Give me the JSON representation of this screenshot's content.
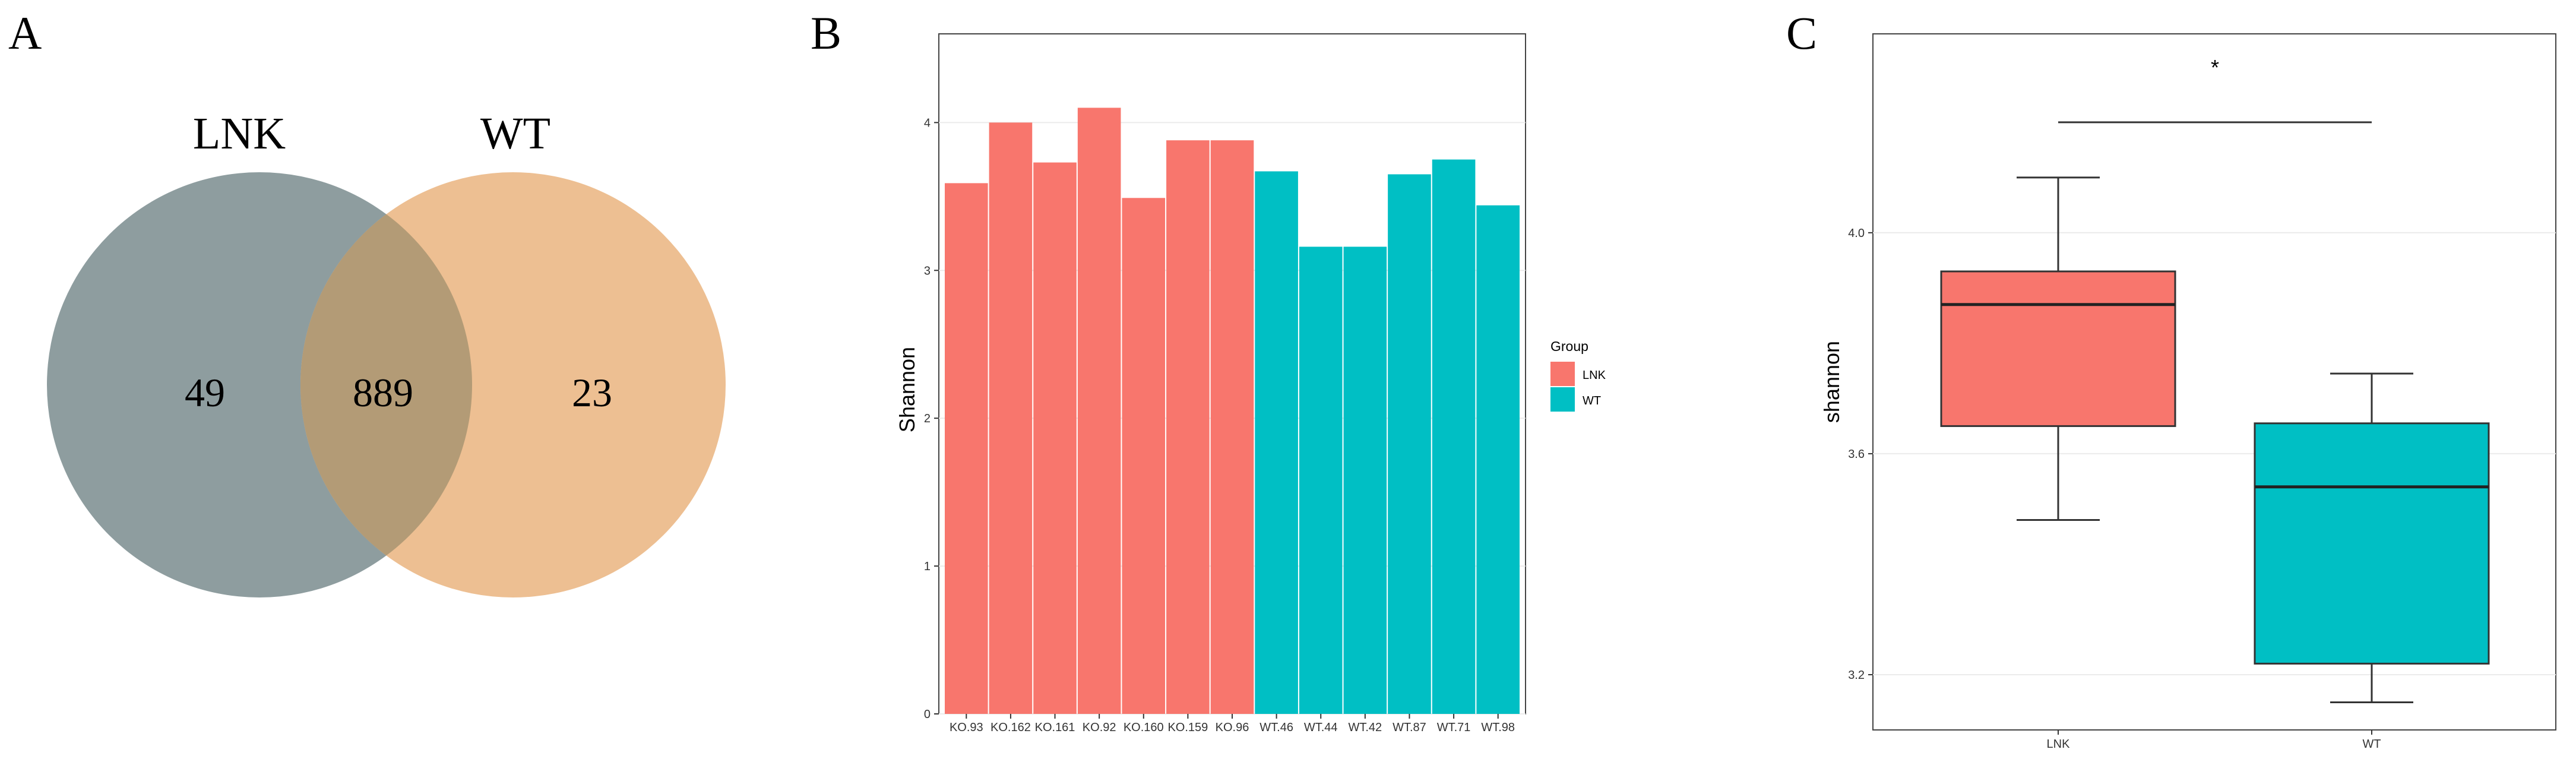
{
  "panels": {
    "a": {
      "letter": "A"
    },
    "b": {
      "letter": "B"
    },
    "c": {
      "letter": "C"
    }
  },
  "colors": {
    "lnk": "#F8766D",
    "wt": "#00BFC4",
    "venn_lnk": "#8E9D9F",
    "venn_wt": "#EDBF92",
    "venn_overlap": "#B39B76"
  },
  "chart_data": [
    {
      "type": "venn",
      "sets": [
        {
          "name": "LNK",
          "unique": "49"
        },
        {
          "name": "WT",
          "unique": "23"
        }
      ],
      "intersection": "889"
    },
    {
      "type": "bar",
      "title": "",
      "xlabel": "",
      "ylabel": "Shannon",
      "ylim": [
        0,
        4.6
      ],
      "yticks": [
        0,
        1,
        2,
        3,
        4
      ],
      "grid": true,
      "categories": [
        "KO.93",
        "KO.162",
        "KO.161",
        "KO.92",
        "KO.160",
        "KO.159",
        "KO.96",
        "WT.46",
        "WT.44",
        "WT.42",
        "WT.87",
        "WT.71",
        "WT.98"
      ],
      "values": [
        3.59,
        4.0,
        3.73,
        4.1,
        3.49,
        3.88,
        3.88,
        3.67,
        3.16,
        3.16,
        3.65,
        3.75,
        3.44
      ],
      "groups": [
        "LNK",
        "LNK",
        "LNK",
        "LNK",
        "LNK",
        "LNK",
        "LNK",
        "WT",
        "WT",
        "WT",
        "WT",
        "WT",
        "WT"
      ],
      "legend": {
        "title": "Group",
        "entries": [
          "LNK",
          "WT"
        ],
        "placement": "right"
      }
    },
    {
      "type": "box",
      "title": "",
      "xlabel": "",
      "ylabel": "shannon",
      "ylim": [
        3.1,
        4.36
      ],
      "yticks": [
        "3.2",
        "3.6",
        "4.0"
      ],
      "grid": true,
      "categories": [
        "LNK",
        "WT"
      ],
      "boxes": [
        {
          "name": "LNK",
          "min": 3.48,
          "q1": 3.65,
          "median": 3.87,
          "q3": 3.93,
          "max": 4.1
        },
        {
          "name": "WT",
          "min": 3.15,
          "q1": 3.22,
          "median": 3.54,
          "q3": 3.655,
          "max": 3.745
        }
      ],
      "significance": {
        "label": "*",
        "level": 4.2
      }
    }
  ]
}
